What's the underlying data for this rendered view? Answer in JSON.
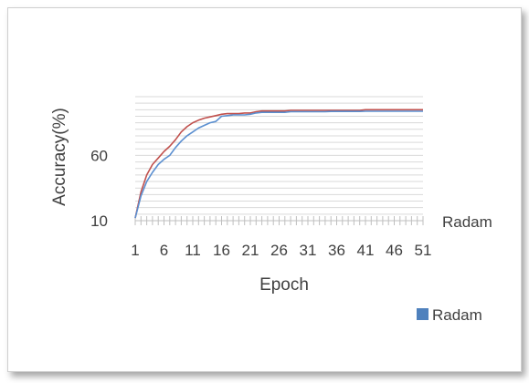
{
  "chart_data": {
    "type": "line",
    "title": "",
    "xlabel": "Epoch",
    "ylabel": "Accuracy(%)",
    "x_tick_labels": [
      "1",
      "6",
      "11",
      "16",
      "21",
      "26",
      "31",
      "36",
      "41",
      "46",
      "51"
    ],
    "y_tick_labels": [
      "10",
      "60"
    ],
    "ylim": [
      10,
      105
    ],
    "xlim": [
      1,
      51
    ],
    "grid": true,
    "legend_position": "bottom-right",
    "axis_end_label": "Radam",
    "x": [
      1,
      2,
      3,
      4,
      5,
      6,
      7,
      8,
      9,
      10,
      11,
      12,
      13,
      14,
      15,
      16,
      17,
      18,
      19,
      20,
      21,
      22,
      23,
      24,
      25,
      26,
      27,
      28,
      29,
      30,
      31,
      32,
      33,
      34,
      35,
      36,
      37,
      38,
      39,
      40,
      41,
      42,
      43,
      44,
      45,
      46,
      47,
      48,
      49,
      50,
      51
    ],
    "series": [
      {
        "name": "Radam",
        "color": "#5b8fd0",
        "values": [
          12,
          29,
          40,
          47,
          53,
          57,
          60,
          66,
          71,
          75,
          78,
          81,
          83,
          85,
          86,
          90,
          90.5,
          91,
          91,
          91,
          91.5,
          92.5,
          93,
          93,
          93,
          93,
          93,
          93.5,
          93.5,
          93.5,
          93.5,
          93.5,
          93.5,
          93.5,
          93.7,
          93.7,
          93.7,
          93.7,
          93.7,
          93.7,
          93.8,
          93.8,
          93.8,
          93.8,
          93.8,
          93.8,
          93.8,
          93.8,
          93.8,
          93.8,
          93.8
        ]
      },
      {
        "name": "",
        "color": "#c0504d",
        "values": [
          12,
          32,
          45,
          53,
          58,
          63,
          67,
          72,
          78,
          82,
          85,
          87,
          88.5,
          89.5,
          90.5,
          91.5,
          92,
          92,
          92,
          92.5,
          92.5,
          93.5,
          94,
          94,
          94,
          94,
          94,
          94.5,
          94.5,
          94.5,
          94.5,
          94.5,
          94.5,
          94.5,
          94.5,
          94.5,
          94.5,
          94.5,
          94.5,
          94.5,
          95,
          95,
          95,
          95,
          95,
          95,
          95,
          95,
          95,
          95,
          95
        ]
      }
    ]
  }
}
